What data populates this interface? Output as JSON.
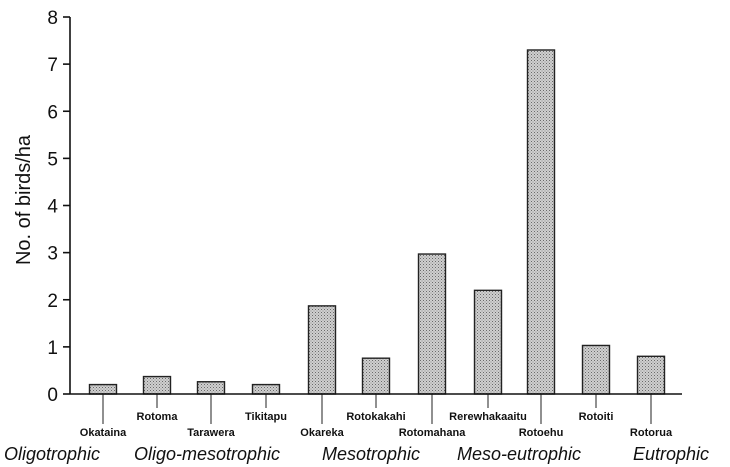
{
  "chart_data": {
    "type": "bar",
    "title": "",
    "xlabel": "",
    "ylabel": "No. of birds/ha",
    "ylim": [
      0,
      8
    ],
    "yticks": [
      "0",
      "1",
      "2",
      "3",
      "4",
      "5",
      "6",
      "7",
      "8"
    ],
    "grid": false,
    "categories": [
      "Okataina",
      "Rotoma",
      "Tarawera",
      "Tikitapu",
      "Okareka",
      "Rotokakahi",
      "Rotomahana",
      "Rerewhakaaitu",
      "Rotoehu",
      "Rotoiti",
      "Rotorua"
    ],
    "values": [
      0.2,
      0.37,
      0.26,
      0.2,
      1.87,
      0.76,
      2.97,
      2.2,
      7.3,
      1.03,
      0.8
    ],
    "zones": [
      "Oligotrophic",
      "Oligo-mesotrophic",
      "Mesotrophic",
      "Meso-eutrophic",
      "Eutrophic"
    ],
    "bar_color": "#bdbdbd"
  }
}
